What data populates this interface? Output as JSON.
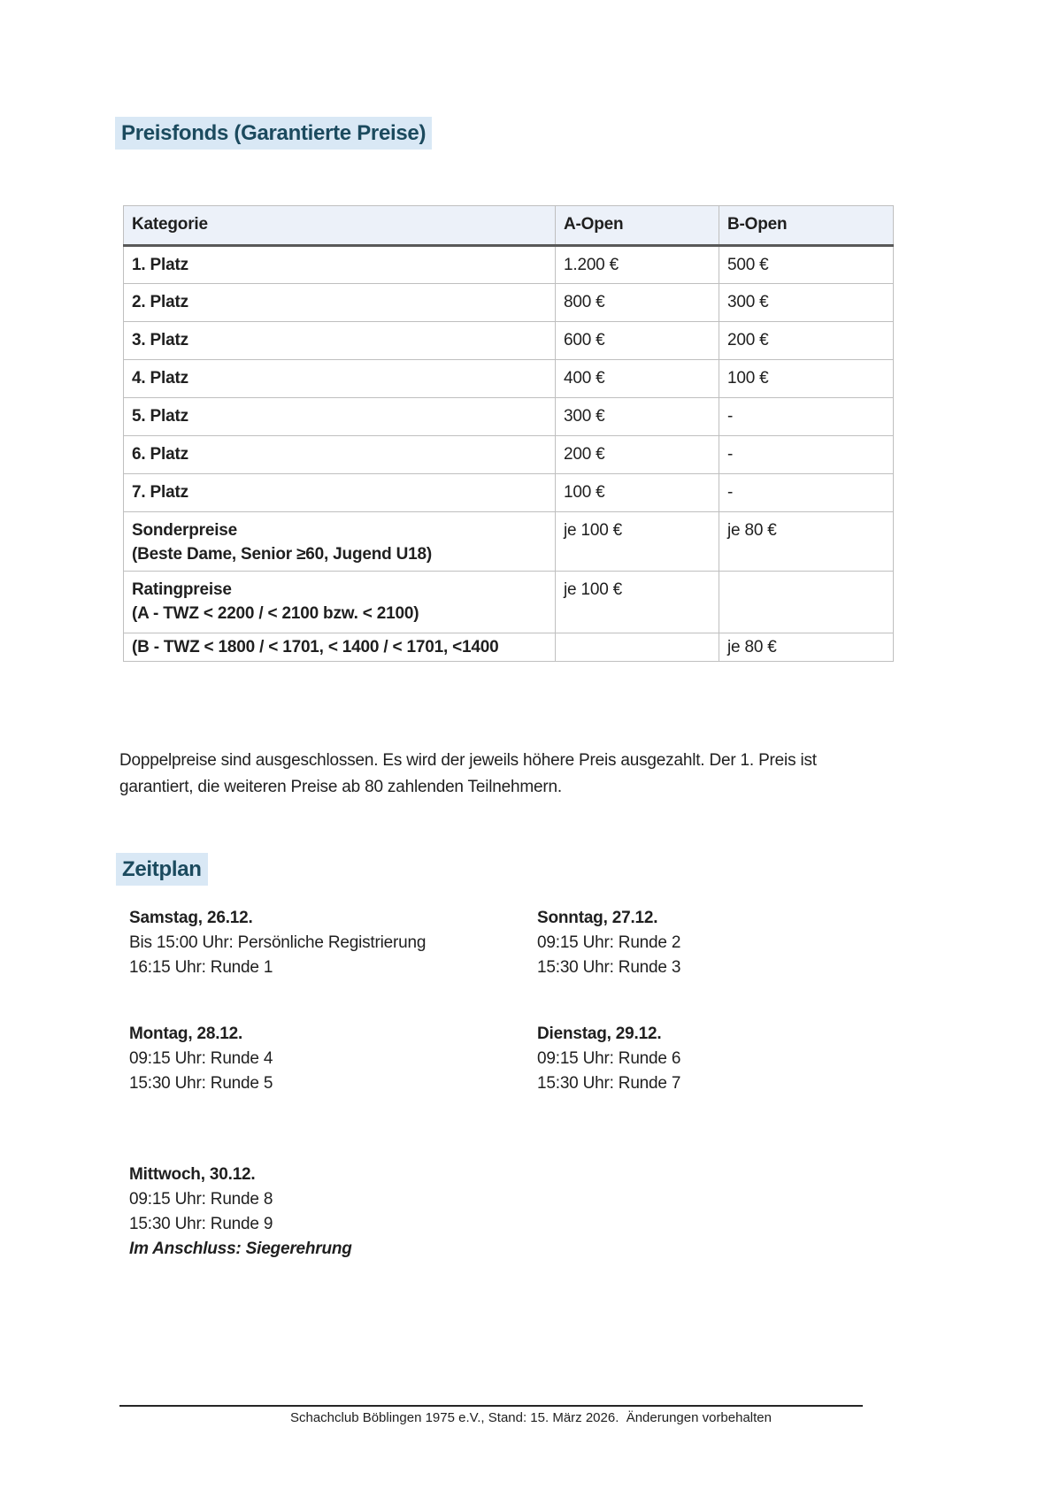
{
  "page": {
    "heading_prizes": "Preisfonds (Garantierte Preise)",
    "heading_schedule": "Zeitplan"
  },
  "colors": {
    "heading_text": "#1b4a5e",
    "heading_highlight": "#d9e8f5",
    "table_header_bg": "#ecf1f9",
    "table_border": "#bfbfbf",
    "header_rule": "#595959"
  },
  "prize_table": {
    "columns": [
      "Kategorie",
      "A-Open",
      "B-Open"
    ],
    "rows": [
      {
        "category": "1. Platz",
        "sub": "",
        "a_open": "1.200 €",
        "b_open": "500 €"
      },
      {
        "category": "2. Platz",
        "sub": "",
        "a_open": "800 €",
        "b_open": "300 €"
      },
      {
        "category": "3. Platz",
        "sub": "",
        "a_open": "600 €",
        "b_open": "200 €"
      },
      {
        "category": "4. Platz",
        "sub": "",
        "a_open": "400 €",
        "b_open": "100 €"
      },
      {
        "category": "5. Platz",
        "sub": "",
        "a_open": "300 €",
        "b_open": "-"
      },
      {
        "category": "6. Platz",
        "sub": "",
        "a_open": "200 €",
        "b_open": "-"
      },
      {
        "category": "7. Platz",
        "sub": "",
        "a_open": "100 €",
        "b_open": "-"
      },
      {
        "category": "Sonderpreise",
        "sub": "(Beste Dame, Senior ≥60, Jugend U18)",
        "a_open": "je 100 €",
        "b_open": "je 80 €"
      },
      {
        "category": "Ratingpreise",
        "sub": "(A - TWZ < 2200 / < 2100 bzw. < 2100)",
        "a_open": "je 100 €",
        "b_open": ""
      },
      {
        "category": "(B - TWZ < 1800 / < 1701, < 1400 / < 1701, <1400",
        "sub": "",
        "a_open": "",
        "b_open": "je 80 €"
      }
    ]
  },
  "note": {
    "line1": "Doppelpreise sind ausgeschlossen. Es wird der jeweils höhere Preis ausgezahlt. Der 1. Preis ist",
    "line2": "garantiert, die weiteren Preise ab 80 zahlenden Teilnehmern."
  },
  "schedule": {
    "blocks": [
      {
        "title": "Samstag, 26.12.",
        "lines": [
          "Bis 15:00 Uhr: Persönliche Registrierung",
          "16:15 Uhr: Runde 1"
        ]
      },
      {
        "title": "Sonntag, 27.12.",
        "lines": [
          "09:15 Uhr: Runde 2",
          "15:30 Uhr: Runde 3"
        ]
      },
      {
        "title": "Montag, 28.12.",
        "lines": [
          "09:15 Uhr: Runde 4",
          "15:30 Uhr: Runde 5"
        ]
      },
      {
        "title": "Dienstag, 29.12.",
        "lines": [
          "09:15 Uhr: Runde 6",
          "15:30 Uhr: Runde 7"
        ]
      },
      {
        "title": "Mittwoch, 30.12.",
        "lines": [
          "09:15 Uhr: Runde 8",
          "15:30 Uhr: Runde 9"
        ],
        "closing": "Im Anschluss: Siegerehrung"
      }
    ]
  },
  "footer": {
    "text": "Schachclub Böblingen 1975 e.V., Stand: 15. März 2026.  Änderungen vorbehalten"
  }
}
